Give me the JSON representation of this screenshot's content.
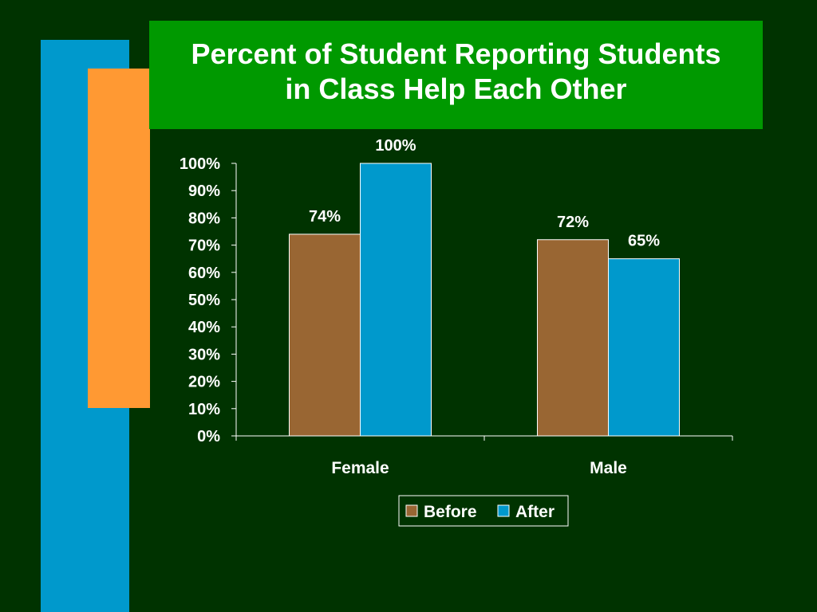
{
  "slide": {
    "title": "Percent of Student Reporting Students\nin Class Help Each Other",
    "colors": {
      "background": "#003300",
      "title_bg": "#009900",
      "accent_blue": "#0099cc",
      "accent_orange": "#ff9933"
    }
  },
  "chart_data": {
    "type": "bar",
    "title": "Percent of Student Reporting Students in Class Help Each Other",
    "categories": [
      "Female",
      "Male"
    ],
    "series": [
      {
        "name": "Before",
        "values": [
          74,
          72
        ],
        "labels": [
          "74%",
          "72%"
        ],
        "color": "#996633"
      },
      {
        "name": "After",
        "values": [
          100,
          65
        ],
        "labels": [
          "100%",
          "65%"
        ],
        "color": "#0099cc"
      }
    ],
    "ylim": [
      0,
      100
    ],
    "yticks": [
      "0%",
      "10%",
      "20%",
      "30%",
      "40%",
      "50%",
      "60%",
      "70%",
      "80%",
      "90%",
      "100%"
    ],
    "grid": false,
    "legend": "bottom",
    "xlabel": "",
    "ylabel": ""
  }
}
